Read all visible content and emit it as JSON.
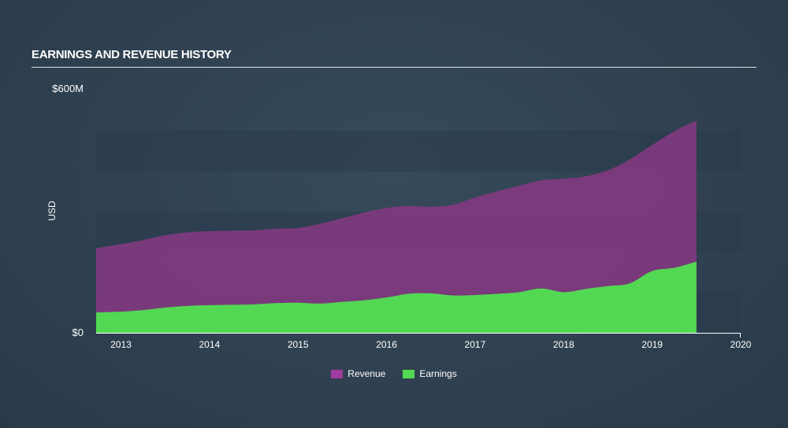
{
  "header": {
    "title": "EARNINGS AND REVENUE HISTORY"
  },
  "colors": {
    "revenue": "#80397f",
    "earnings": "#53d853",
    "band": "#2a3b4c"
  },
  "chart_data": {
    "type": "area",
    "title": "EARNINGS AND REVENUE HISTORY",
    "ylabel": "USD",
    "ylim": [
      0,
      600
    ],
    "y_ticks": [
      {
        "value": 600,
        "label": "$600M"
      },
      {
        "value": 0,
        "label": "$0"
      }
    ],
    "x_ticks": [
      "2013",
      "2014",
      "2015",
      "2016",
      "2017",
      "2018",
      "2019",
      "2020"
    ],
    "xlim": [
      2012.72,
      2020.0
    ],
    "legend_position": "bottom-center",
    "series": [
      {
        "name": "Revenue",
        "color": "#80397f",
        "points": [
          [
            2012.72,
            208
          ],
          [
            2013.0,
            218
          ],
          [
            2013.25,
            228
          ],
          [
            2013.5,
            240
          ],
          [
            2013.75,
            247
          ],
          [
            2014.0,
            250
          ],
          [
            2014.25,
            251
          ],
          [
            2014.5,
            252
          ],
          [
            2014.75,
            256
          ],
          [
            2015.0,
            258
          ],
          [
            2015.25,
            268
          ],
          [
            2015.5,
            282
          ],
          [
            2015.75,
            296
          ],
          [
            2016.0,
            307
          ],
          [
            2016.25,
            312
          ],
          [
            2016.5,
            310
          ],
          [
            2016.75,
            315
          ],
          [
            2017.0,
            333
          ],
          [
            2017.25,
            348
          ],
          [
            2017.5,
            362
          ],
          [
            2017.75,
            375
          ],
          [
            2018.0,
            379
          ],
          [
            2018.25,
            385
          ],
          [
            2018.5,
            400
          ],
          [
            2018.75,
            427
          ],
          [
            2019.0,
            462
          ],
          [
            2019.25,
            496
          ],
          [
            2019.5,
            522
          ]
        ]
      },
      {
        "name": "Earnings",
        "color": "#53d853",
        "points": [
          [
            2012.72,
            50
          ],
          [
            2013.0,
            52
          ],
          [
            2013.25,
            56
          ],
          [
            2013.5,
            62
          ],
          [
            2013.75,
            66
          ],
          [
            2014.0,
            68
          ],
          [
            2014.25,
            69
          ],
          [
            2014.5,
            70
          ],
          [
            2014.75,
            73
          ],
          [
            2015.0,
            74
          ],
          [
            2015.25,
            72
          ],
          [
            2015.5,
            76
          ],
          [
            2015.75,
            80
          ],
          [
            2016.0,
            87
          ],
          [
            2016.25,
            96
          ],
          [
            2016.5,
            97
          ],
          [
            2016.75,
            92
          ],
          [
            2017.0,
            93
          ],
          [
            2017.25,
            96
          ],
          [
            2017.5,
            100
          ],
          [
            2017.75,
            109
          ],
          [
            2018.0,
            100
          ],
          [
            2018.25,
            108
          ],
          [
            2018.5,
            115
          ],
          [
            2018.75,
            122
          ],
          [
            2019.0,
            152
          ],
          [
            2019.25,
            160
          ],
          [
            2019.5,
            175
          ]
        ]
      }
    ]
  }
}
